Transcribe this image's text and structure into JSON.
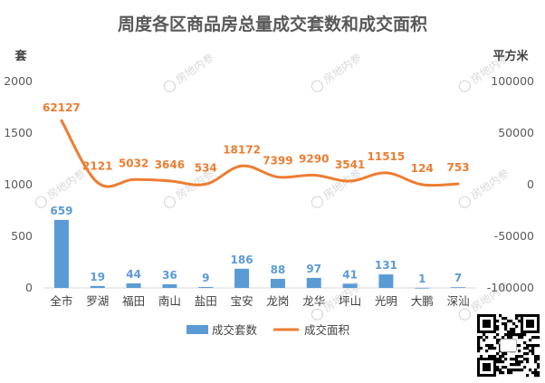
{
  "chart_data": {
    "type": "bar",
    "title": "周度各区商品房总量成交套数和成交面积",
    "left_axis_unit": "套",
    "right_axis_unit": "平方米",
    "categories": [
      "全市",
      "罗湖",
      "福田",
      "南山",
      "盐田",
      "宝安",
      "龙岗",
      "龙华",
      "坪山",
      "光明",
      "大鹏",
      "深汕"
    ],
    "ylim_left": [
      0,
      2000
    ],
    "ylim_right": [
      -100000,
      100000
    ],
    "yticks_left": [
      "0",
      "500",
      "1000",
      "1500",
      "2000"
    ],
    "yticks_right": [
      "-100000",
      "-50000",
      "0",
      "50000",
      "100000"
    ],
    "series": [
      {
        "name": "成交套数",
        "type": "bar",
        "axis": "left",
        "color": "#5b9bd5",
        "values": [
          659,
          19,
          44,
          36,
          9,
          186,
          88,
          97,
          41,
          131,
          1,
          7
        ],
        "labels": [
          "659",
          "19",
          "44",
          "36",
          "9",
          "186",
          "88",
          "97",
          "41",
          "131",
          "1",
          "7"
        ]
      },
      {
        "name": "成交面积",
        "type": "line",
        "axis": "right",
        "color": "#ed7d31",
        "values": [
          62127,
          2121,
          5032,
          3646,
          534,
          18172,
          7399,
          9290,
          3541,
          11515,
          124,
          753
        ],
        "labels": [
          "62127",
          "2121",
          "5032",
          "3646",
          "534",
          "18172",
          "7399",
          "9290",
          "3541",
          "11515",
          "124",
          "753"
        ]
      }
    ],
    "grid": false,
    "legend_position": "bottom",
    "watermark_text": "房地内参"
  },
  "icons": {
    "qr_code": "qr-code-icon",
    "watermark_logo": "watermark-logo-icon"
  }
}
